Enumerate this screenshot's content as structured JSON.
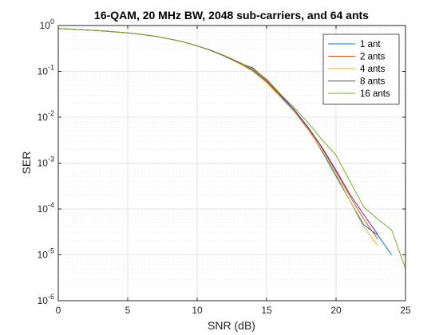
{
  "chart_data": {
    "type": "line",
    "title": "16-QAM, 20 MHz BW, 2048 sub-carriers, and 64 ants",
    "xlabel": "SNR (dB)",
    "ylabel": "SER",
    "xlim": [
      0,
      25
    ],
    "ylim": [
      1e-06,
      1
    ],
    "yscale": "log",
    "xticks": [
      0,
      5,
      10,
      15,
      20,
      25
    ],
    "yticks": [
      {
        "value": 1e-06,
        "base": "10",
        "exp": "-6"
      },
      {
        "value": 1e-05,
        "base": "10",
        "exp": "-5"
      },
      {
        "value": 0.0001,
        "base": "10",
        "exp": "-4"
      },
      {
        "value": 0.001,
        "base": "10",
        "exp": "-3"
      },
      {
        "value": 0.01,
        "base": "10",
        "exp": "-2"
      },
      {
        "value": 0.1,
        "base": "10",
        "exp": "-1"
      },
      {
        "value": 1,
        "base": "10",
        "exp": "0"
      }
    ],
    "grid": true,
    "minor_grid": true,
    "legend_position": "top-right",
    "series": [
      {
        "name": "1 ant",
        "color": "#0072BD",
        "x": [
          0,
          1,
          2,
          3,
          4,
          5,
          6,
          7,
          8,
          9,
          10,
          11,
          12,
          13,
          14,
          15,
          16,
          17,
          18,
          19,
          20,
          21,
          22,
          23,
          24
        ],
        "y": [
          0.86,
          0.83,
          0.8,
          0.77,
          0.73,
          0.69,
          0.64,
          0.58,
          0.51,
          0.44,
          0.36,
          0.285,
          0.215,
          0.155,
          0.105,
          0.06,
          0.029,
          0.014,
          0.0055,
          0.0018,
          0.00052,
          0.00015,
          4.5e-05,
          2.7e-05,
          1e-05
        ]
      },
      {
        "name": "2 ants",
        "color": "#D95319",
        "x": [
          0,
          1,
          2,
          3,
          4,
          5,
          6,
          7,
          8,
          9,
          10,
          11,
          12,
          13,
          14,
          15,
          16,
          17,
          18,
          19,
          20,
          21,
          22,
          23
        ],
        "y": [
          0.86,
          0.83,
          0.8,
          0.77,
          0.73,
          0.69,
          0.64,
          0.58,
          0.51,
          0.44,
          0.36,
          0.285,
          0.215,
          0.152,
          0.112,
          0.062,
          0.03,
          0.0145,
          0.0058,
          0.0021,
          0.00065,
          0.00019,
          6e-05,
          2.2e-05
        ]
      },
      {
        "name": "4 ants",
        "color": "#EDB120",
        "x": [
          0,
          1,
          2,
          3,
          4,
          5,
          6,
          7,
          8,
          9,
          10,
          11,
          12,
          13,
          14,
          15,
          16,
          17,
          18,
          19,
          20,
          21,
          22,
          23
        ],
        "y": [
          0.86,
          0.83,
          0.8,
          0.77,
          0.73,
          0.69,
          0.64,
          0.58,
          0.51,
          0.44,
          0.36,
          0.285,
          0.212,
          0.15,
          0.1,
          0.057,
          0.027,
          0.013,
          0.0053,
          0.0019,
          0.00058,
          0.00015,
          4e-05,
          1.6e-05
        ]
      },
      {
        "name": "8 ants",
        "color": "#7E2F8E",
        "x": [
          0,
          1,
          2,
          3,
          4,
          5,
          6,
          7,
          8,
          9,
          10,
          11,
          12,
          13,
          14,
          15,
          16,
          17,
          18,
          19,
          20,
          21,
          22,
          23
        ],
        "y": [
          0.86,
          0.83,
          0.8,
          0.77,
          0.73,
          0.69,
          0.64,
          0.58,
          0.51,
          0.44,
          0.36,
          0.285,
          0.215,
          0.155,
          0.12,
          0.066,
          0.031,
          0.0145,
          0.006,
          0.0022,
          0.0007,
          0.00021,
          7.5e-05,
          2.8e-05
        ]
      },
      {
        "name": "16 ants",
        "color": "#77AC30",
        "x": [
          0,
          1,
          2,
          3,
          4,
          5,
          6,
          7,
          8,
          9,
          10,
          11,
          12,
          13,
          14,
          15,
          16,
          17,
          18,
          19,
          20,
          21,
          22,
          23,
          24,
          25
        ],
        "y": [
          0.86,
          0.83,
          0.8,
          0.77,
          0.73,
          0.69,
          0.64,
          0.58,
          0.51,
          0.44,
          0.36,
          0.29,
          0.22,
          0.16,
          0.115,
          0.068,
          0.032,
          0.016,
          0.0075,
          0.0032,
          0.0015,
          0.0004,
          0.00011,
          6e-05,
          3.5e-05,
          5e-06
        ]
      }
    ]
  }
}
